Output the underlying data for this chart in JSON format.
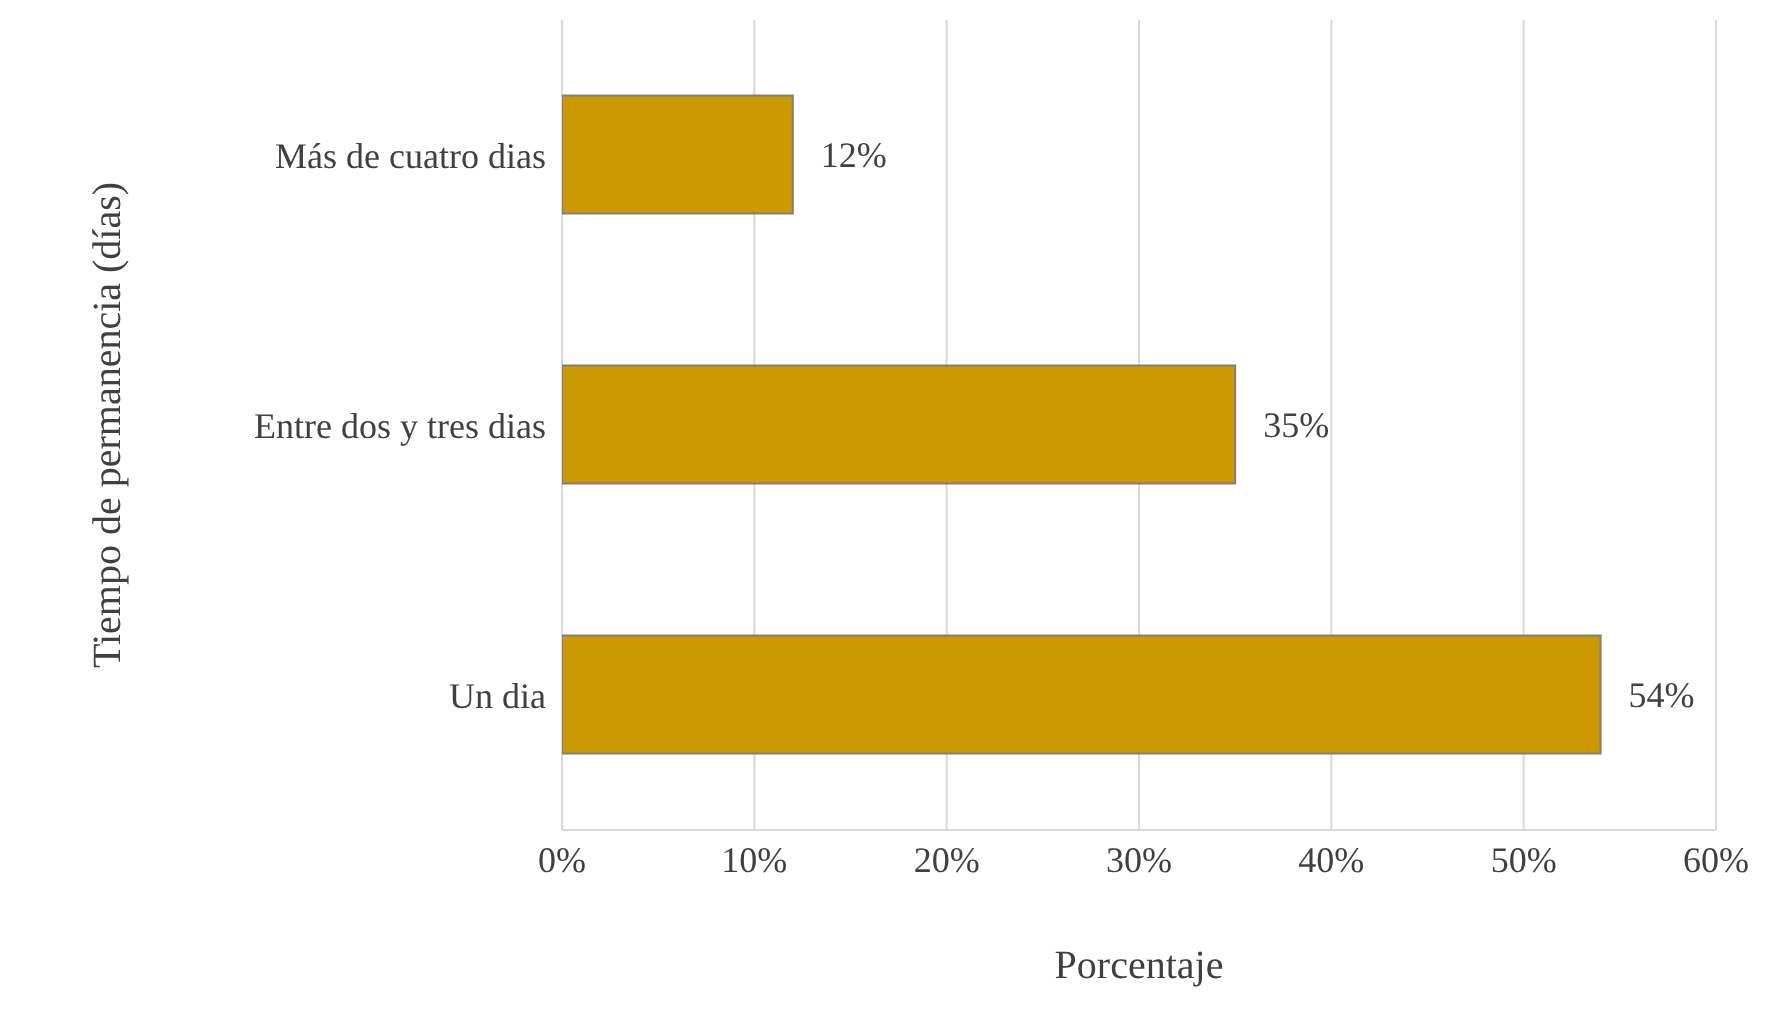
{
  "chart_data": {
    "type": "bar",
    "orientation": "horizontal",
    "xlabel": "Porcentaje",
    "ylabel": "Tiempo de permanencia (días)",
    "categories": [
      "Más de cuatro dias",
      "Entre dos y tres dias",
      "Un dia"
    ],
    "values": [
      12,
      35,
      54
    ],
    "value_labels": [
      "12%",
      "35%",
      "54%"
    ],
    "color": "#cc9900",
    "xlim": [
      0,
      60
    ],
    "xticks": [
      {
        "value": 0,
        "label": "0%"
      },
      {
        "value": 10,
        "label": "10%"
      },
      {
        "value": 20,
        "label": "20%"
      },
      {
        "value": 30,
        "label": "30%"
      },
      {
        "value": 40,
        "label": "40%"
      },
      {
        "value": 50,
        "label": "50%"
      },
      {
        "value": 60,
        "label": "60%"
      }
    ],
    "grid": "x",
    "legend": false
  }
}
